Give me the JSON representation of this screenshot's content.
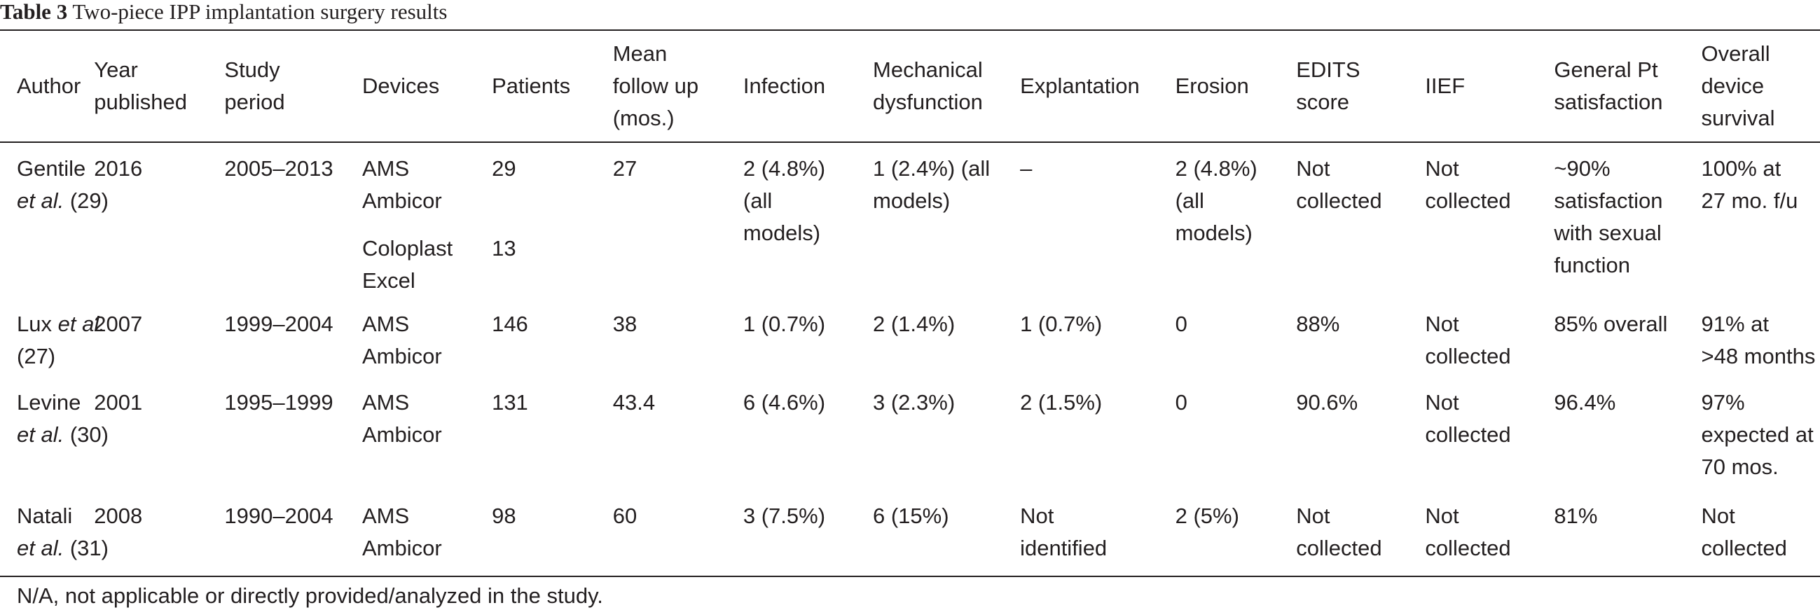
{
  "caption": {
    "label": "Table 3",
    "text": "Two-piece IPP implantation surgery results"
  },
  "columns": [
    [
      "Author"
    ],
    [
      "Year",
      "published"
    ],
    [
      "Study",
      "period"
    ],
    [
      "Devices"
    ],
    [
      "Patients"
    ],
    [
      "Mean",
      "follow up",
      "(mos.)"
    ],
    [
      "Infection"
    ],
    [
      "Mechanical",
      "dysfunction"
    ],
    [
      "Explantation"
    ],
    [
      "Erosion"
    ],
    [
      "EDITS",
      "score"
    ],
    [
      "IIEF"
    ],
    [
      "General Pt",
      "satisfaction"
    ],
    [
      "Overall",
      "device",
      "survival"
    ]
  ],
  "rows": [
    {
      "author_name": "Gentile",
      "author_etal": "et al.",
      "author_ref": "(29)",
      "year": "2016",
      "period": "2005–2013",
      "devices": [
        [
          "AMS",
          "Ambicor"
        ],
        [
          "Coloplast",
          "Excel"
        ]
      ],
      "patients": [
        "29",
        "13"
      ],
      "followup": [
        "27"
      ],
      "infection": [
        "2 (4.8%)",
        "(all",
        "models)"
      ],
      "mechanical": [
        "1 (2.4%) (all",
        "models)"
      ],
      "explantation": [
        "–"
      ],
      "erosion": [
        "2 (4.8%)",
        "(all",
        "models)"
      ],
      "edits": [
        "Not",
        "collected"
      ],
      "iief": [
        "Not",
        "collected"
      ],
      "satisfaction": [
        "~90%",
        "satisfaction",
        "with sexual",
        "function"
      ],
      "survival": [
        "100% at",
        "27 mo. f/u"
      ]
    },
    {
      "author_name": "Lux",
      "author_etal": "et al.",
      "author_ref": "(27)",
      "year": "2007",
      "period": "1999–2004",
      "devices": [
        [
          "AMS",
          "Ambicor"
        ]
      ],
      "patients": [
        "146"
      ],
      "followup": [
        "38"
      ],
      "infection": [
        "1 (0.7%)"
      ],
      "mechanical": [
        "2 (1.4%)"
      ],
      "explantation": [
        "1 (0.7%)"
      ],
      "erosion": [
        "0"
      ],
      "edits": [
        "88%"
      ],
      "iief": [
        "Not",
        "collected"
      ],
      "satisfaction": [
        "85% overall"
      ],
      "survival": [
        "91% at",
        ">48 months"
      ]
    },
    {
      "author_name": "Levine",
      "author_etal": "et al.",
      "author_ref": "(30)",
      "year": "2001",
      "period": "1995–1999",
      "devices": [
        [
          "AMS",
          "Ambicor"
        ]
      ],
      "patients": [
        "131"
      ],
      "followup": [
        "43.4"
      ],
      "infection": [
        "6 (4.6%)"
      ],
      "mechanical": [
        "3 (2.3%)"
      ],
      "explantation": [
        "2 (1.5%)"
      ],
      "erosion": [
        "0"
      ],
      "edits": [
        "90.6%"
      ],
      "iief": [
        "Not",
        "collected"
      ],
      "satisfaction": [
        "96.4%"
      ],
      "survival": [
        "97%",
        "expected at",
        "70 mos."
      ]
    },
    {
      "author_name": "Natali",
      "author_etal": "et al.",
      "author_ref": "(31)",
      "year": "2008",
      "period": "1990–2004",
      "devices": [
        [
          "AMS",
          "Ambicor"
        ]
      ],
      "patients": [
        "98"
      ],
      "followup": [
        "60"
      ],
      "infection": [
        "3 (7.5%)"
      ],
      "mechanical": [
        "6 (15%)"
      ],
      "explantation": [
        "Not",
        "identified"
      ],
      "erosion": [
        "2 (5%)"
      ],
      "edits": [
        "Not",
        "collected"
      ],
      "iief": [
        "Not",
        "collected"
      ],
      "satisfaction": [
        "81%"
      ],
      "survival": [
        "Not",
        "collected"
      ]
    }
  ],
  "footnote": "N/A, not applicable or directly provided/analyzed in the study."
}
